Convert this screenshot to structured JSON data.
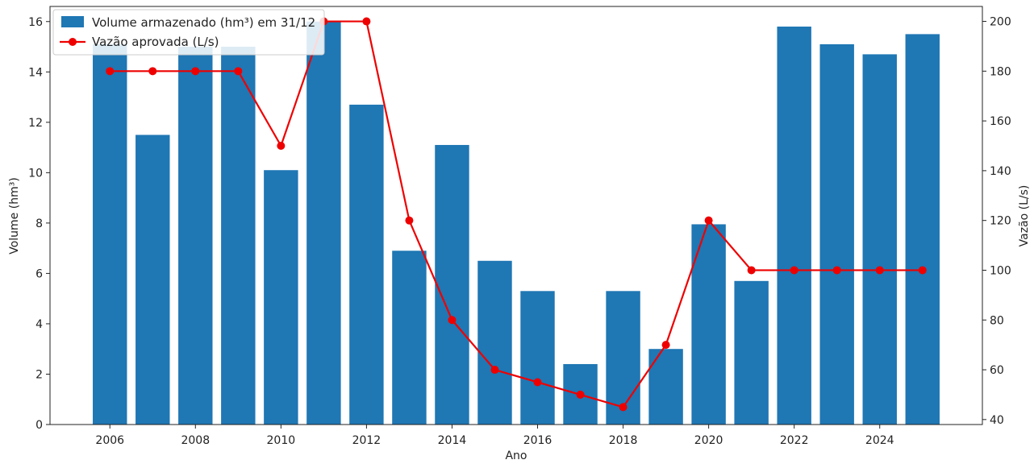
{
  "chart_data": {
    "type": "bar",
    "xlabel": "Ano",
    "ylabel_left": "Volume (hm³)",
    "ylabel_right": "Vazão (L/s)",
    "x": [
      2006,
      2007,
      2008,
      2009,
      2010,
      2011,
      2012,
      2013,
      2014,
      2015,
      2016,
      2017,
      2018,
      2019,
      2020,
      2021,
      2022,
      2023,
      2024,
      2025
    ],
    "x_ticks": [
      "2006",
      "2008",
      "2010",
      "2012",
      "2014",
      "2016",
      "2018",
      "2020",
      "2022",
      "2024"
    ],
    "y_left_ticks": [
      "0",
      "2",
      "4",
      "6",
      "8",
      "10",
      "12",
      "14",
      "16"
    ],
    "y_right_ticks": [
      "40",
      "60",
      "80",
      "100",
      "120",
      "140",
      "160",
      "180",
      "200"
    ],
    "ylim_left": [
      0,
      16.6
    ],
    "ylim_right": [
      38,
      206
    ],
    "xlim": [
      2004.6,
      2026.4
    ],
    "legend_placement": "upper-left",
    "grid": false,
    "series": [
      {
        "name": "Volume armazenado (hm³) em 31/12",
        "type": "bar",
        "axis": "left",
        "color": "#1f77b4",
        "values": [
          15.1,
          11.5,
          15.0,
          15.0,
          10.1,
          16.0,
          12.7,
          6.9,
          11.1,
          6.5,
          5.3,
          2.4,
          5.3,
          3.0,
          7.95,
          5.7,
          15.8,
          15.1,
          14.7,
          15.5
        ]
      },
      {
        "name": "Vazão aprovada (L/s)",
        "type": "line",
        "axis": "right",
        "color": "#ee0000",
        "values": [
          180,
          180,
          180,
          180,
          150,
          200,
          200,
          120,
          80,
          60,
          55,
          50,
          45,
          70,
          120,
          100,
          100,
          100,
          100,
          100
        ]
      }
    ]
  }
}
